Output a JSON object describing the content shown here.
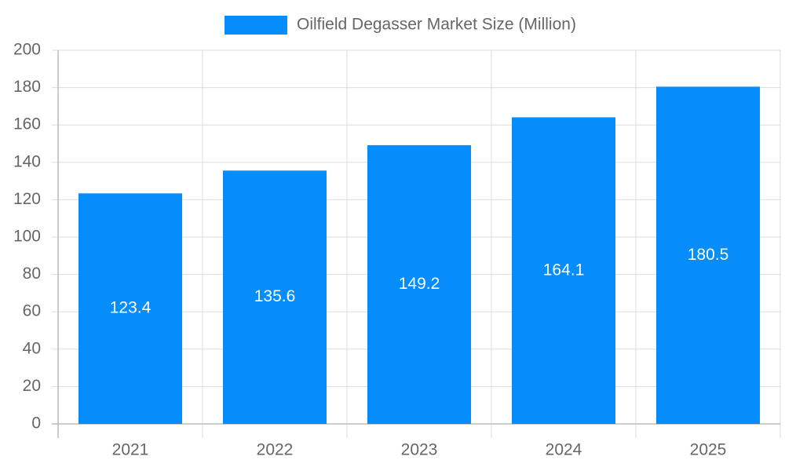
{
  "chart_data": {
    "type": "bar",
    "categories": [
      "2021",
      "2022",
      "2023",
      "2024",
      "2025"
    ],
    "series": [
      {
        "name": "Oilfield Degasser Market Size (Million)",
        "color": "#058dfc",
        "values": [
          123.4,
          135.6,
          149.2,
          164.1,
          180.5
        ]
      }
    ],
    "ylim": [
      0,
      200
    ],
    "yticks": [
      0,
      20,
      40,
      60,
      80,
      100,
      120,
      140,
      160,
      180,
      200
    ],
    "grid": true,
    "legend": "top",
    "data_labels": true
  }
}
